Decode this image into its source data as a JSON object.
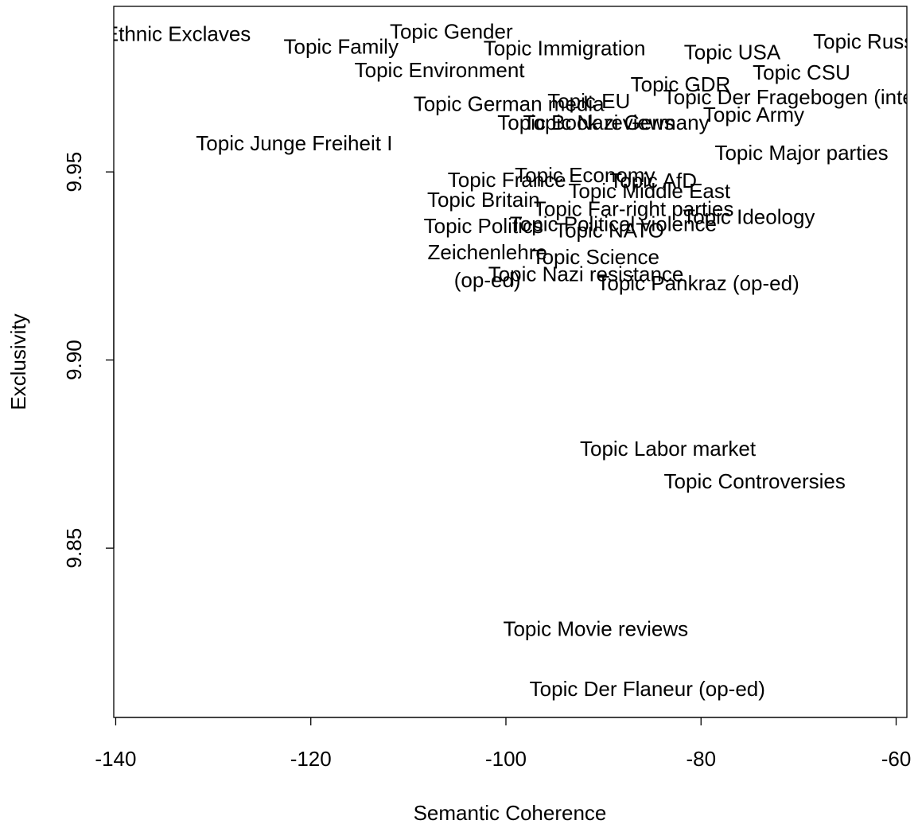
{
  "chart_data": {
    "type": "scatter",
    "x_label": "Semantic Coherence",
    "y_label": "Exclusivity",
    "labels": [
      "Topic Ethnic Exclaves",
      "Topic Gender",
      "Topic Family",
      "Topic Immigration",
      "Topic USA",
      "Topic Russia",
      "Topic Environment",
      "Topic CSU",
      "Topic GDR",
      "Topic Der Fragebogen (interview)",
      "Topic German media",
      "Topic EU",
      "Topic Army",
      "Topic Book reviews",
      "Topic Nazi Germany",
      "Topic Junge Freiheit I",
      "Topic Major parties",
      "Topic Economy",
      "Topic France",
      "Topic AfD",
      "Topic Middle East",
      "Topic Britain",
      "Topic Far-right parties",
      "Topic Ideology",
      "Topic Political violence",
      "Topic Politics",
      "Topic NATO",
      "Topic Science",
      [
        "Zeichenlehre",
        "(op-ed)"
      ],
      "Topic Nazi resistance",
      "Topic Pankraz (op-ed)",
      "Topic Labor market",
      "Topic Controversies",
      "Topic Movie reviews",
      "Topic Der Flaneur (op-ed)"
    ],
    "x": [
      -136.4,
      -105.6,
      -116.9,
      -94.0,
      -76.8,
      -62.5,
      -106.8,
      -69.7,
      -82.1,
      -68.2,
      -99.7,
      -91.5,
      -74.6,
      -91.8,
      -88.7,
      -121.7,
      -69.7,
      -91.9,
      -99.9,
      -84.9,
      -85.3,
      -102.3,
      -86.9,
      -75.1,
      -89.0,
      -102.3,
      -89.4,
      -90.8,
      -101.9,
      -91.8,
      -80.3,
      -83.4,
      -74.5,
      -90.8,
      -85.5
    ],
    "y": [
      9.9863,
      9.9869,
      9.9829,
      9.9825,
      9.9814,
      9.9842,
      9.9766,
      9.976,
      9.9728,
      9.9694,
      9.9677,
      9.9684,
      9.9648,
      9.9627,
      9.9627,
      9.9572,
      9.9546,
      9.9487,
      9.9475,
      9.9473,
      9.9445,
      9.9422,
      9.9397,
      9.9376,
      9.9357,
      9.9352,
      9.934,
      9.927,
      9.9245,
      9.9224,
      9.92,
      9.876,
      9.8673,
      9.8281,
      9.8122
    ],
    "color": "#000000",
    "xlim": [
      -140.2,
      -58.9
    ],
    "ylim": [
      9.805,
      9.994
    ],
    "xticks": [
      -140,
      -120,
      -100,
      -80,
      -60
    ],
    "yticks": [
      9.85,
      {
        "value": 9.9,
        "label": "9.90"
      },
      9.95
    ]
  }
}
